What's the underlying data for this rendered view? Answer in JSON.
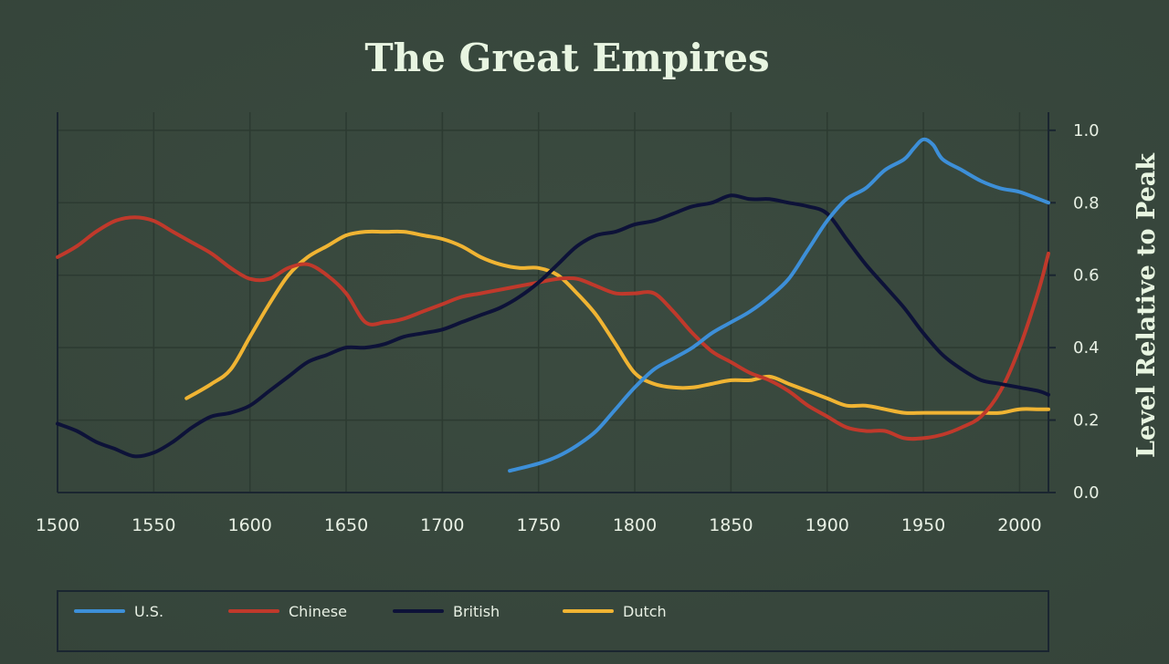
{
  "chart_data": {
    "type": "line",
    "title": "The Great Empires",
    "ylabel": "Level Relative to Peak",
    "xlabel": "",
    "xlim": [
      1500,
      2015
    ],
    "ylim": [
      0,
      1.05
    ],
    "x_ticks": [
      1500,
      1550,
      1600,
      1650,
      1700,
      1750,
      1800,
      1850,
      1900,
      1950,
      2000
    ],
    "y_ticks": [
      "0.0",
      "0.2",
      "0.4",
      "0.6",
      "0.8",
      "1.0"
    ],
    "y_axis_position": "right",
    "grid": true,
    "legend_position": "bottom",
    "series": [
      {
        "name": "U.S.",
        "color": "#3d8fd8",
        "x": [
          1735,
          1750,
          1760,
          1770,
          1780,
          1790,
          1800,
          1810,
          1820,
          1830,
          1840,
          1850,
          1860,
          1870,
          1880,
          1890,
          1900,
          1910,
          1920,
          1930,
          1940,
          1945,
          1950,
          1955,
          1960,
          1970,
          1980,
          1990,
          2000,
          2010,
          2015
        ],
        "y": [
          0.06,
          0.08,
          0.1,
          0.13,
          0.17,
          0.23,
          0.29,
          0.34,
          0.37,
          0.4,
          0.44,
          0.47,
          0.5,
          0.54,
          0.59,
          0.67,
          0.75,
          0.81,
          0.84,
          0.89,
          0.92,
          0.95,
          0.975,
          0.96,
          0.92,
          0.89,
          0.86,
          0.84,
          0.83,
          0.81,
          0.8
        ]
      },
      {
        "name": "Chinese",
        "color": "#c0392b",
        "x": [
          1500,
          1510,
          1520,
          1530,
          1540,
          1550,
          1560,
          1570,
          1580,
          1590,
          1600,
          1610,
          1620,
          1630,
          1640,
          1650,
          1660,
          1670,
          1680,
          1690,
          1700,
          1710,
          1720,
          1730,
          1740,
          1750,
          1760,
          1770,
          1780,
          1790,
          1800,
          1810,
          1820,
          1830,
          1840,
          1850,
          1860,
          1870,
          1880,
          1890,
          1900,
          1910,
          1920,
          1930,
          1940,
          1950,
          1960,
          1970,
          1980,
          1990,
          2000,
          2010,
          2015
        ],
        "y": [
          0.65,
          0.68,
          0.72,
          0.75,
          0.76,
          0.75,
          0.72,
          0.69,
          0.66,
          0.62,
          0.59,
          0.59,
          0.62,
          0.63,
          0.6,
          0.55,
          0.47,
          0.47,
          0.48,
          0.5,
          0.52,
          0.54,
          0.55,
          0.56,
          0.57,
          0.58,
          0.59,
          0.59,
          0.57,
          0.55,
          0.55,
          0.55,
          0.5,
          0.44,
          0.39,
          0.36,
          0.33,
          0.31,
          0.28,
          0.24,
          0.21,
          0.18,
          0.17,
          0.17,
          0.15,
          0.15,
          0.16,
          0.18,
          0.21,
          0.28,
          0.4,
          0.56,
          0.66
        ]
      },
      {
        "name": "British",
        "color": "#0d1238",
        "x": [
          1500,
          1510,
          1520,
          1530,
          1540,
          1550,
          1560,
          1570,
          1580,
          1590,
          1600,
          1610,
          1620,
          1630,
          1640,
          1650,
          1660,
          1670,
          1680,
          1690,
          1700,
          1710,
          1720,
          1730,
          1740,
          1750,
          1760,
          1770,
          1780,
          1790,
          1800,
          1810,
          1820,
          1830,
          1840,
          1850,
          1860,
          1870,
          1880,
          1890,
          1900,
          1910,
          1920,
          1930,
          1940,
          1950,
          1960,
          1970,
          1980,
          1990,
          2000,
          2010,
          2015
        ],
        "y": [
          0.19,
          0.17,
          0.14,
          0.12,
          0.1,
          0.11,
          0.14,
          0.18,
          0.21,
          0.22,
          0.24,
          0.28,
          0.32,
          0.36,
          0.38,
          0.4,
          0.4,
          0.41,
          0.43,
          0.44,
          0.45,
          0.47,
          0.49,
          0.51,
          0.54,
          0.58,
          0.63,
          0.68,
          0.71,
          0.72,
          0.74,
          0.75,
          0.77,
          0.79,
          0.8,
          0.82,
          0.81,
          0.81,
          0.8,
          0.79,
          0.77,
          0.7,
          0.63,
          0.57,
          0.51,
          0.44,
          0.38,
          0.34,
          0.31,
          0.3,
          0.29,
          0.28,
          0.27
        ]
      },
      {
        "name": "Dutch",
        "color": "#f0b433",
        "x": [
          1567,
          1580,
          1590,
          1600,
          1610,
          1620,
          1630,
          1640,
          1650,
          1660,
          1670,
          1680,
          1690,
          1700,
          1710,
          1720,
          1730,
          1740,
          1750,
          1760,
          1770,
          1780,
          1790,
          1800,
          1810,
          1820,
          1830,
          1840,
          1850,
          1860,
          1870,
          1880,
          1890,
          1900,
          1910,
          1920,
          1930,
          1940,
          1950,
          1960,
          1970,
          1980,
          1990,
          2000,
          2010,
          2015
        ],
        "y": [
          0.26,
          0.3,
          0.34,
          0.43,
          0.52,
          0.6,
          0.65,
          0.68,
          0.71,
          0.72,
          0.72,
          0.72,
          0.71,
          0.7,
          0.68,
          0.65,
          0.63,
          0.62,
          0.62,
          0.6,
          0.55,
          0.49,
          0.41,
          0.33,
          0.3,
          0.29,
          0.29,
          0.3,
          0.31,
          0.31,
          0.32,
          0.3,
          0.28,
          0.26,
          0.24,
          0.24,
          0.23,
          0.22,
          0.22,
          0.22,
          0.22,
          0.22,
          0.22,
          0.23,
          0.23,
          0.23
        ]
      }
    ]
  }
}
